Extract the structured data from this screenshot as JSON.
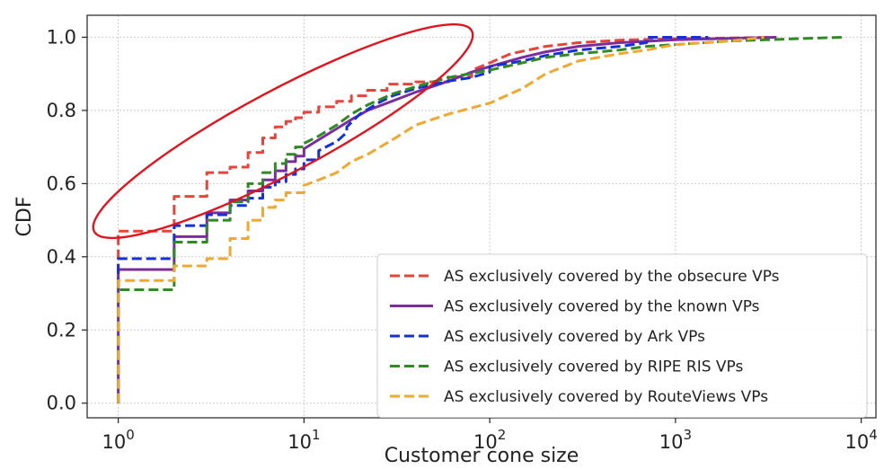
{
  "chart_data": {
    "type": "line",
    "xlabel": "Customer cone size",
    "ylabel": "CDF",
    "xscale": "log",
    "xlim": [
      0.68,
      12000
    ],
    "ylim": [
      -0.04,
      1.06
    ],
    "xticks": [
      1,
      10,
      100,
      1000,
      10000
    ],
    "xtick_labels": [
      {
        "base": "10",
        "exp": "0"
      },
      {
        "base": "10",
        "exp": "1"
      },
      {
        "base": "10",
        "exp": "2"
      },
      {
        "base": "10",
        "exp": "3"
      },
      {
        "base": "10",
        "exp": "4"
      }
    ],
    "yticks": [
      0.0,
      0.2,
      0.4,
      0.6,
      0.8,
      1.0
    ],
    "ytick_labels": [
      "0.0",
      "0.2",
      "0.4",
      "0.6",
      "0.8",
      "1.0"
    ],
    "grid": true,
    "legend_position": "lower-right",
    "series": [
      {
        "name": "AS exclusively covered by the obsecure VPs",
        "color": "#e8443a",
        "dash": "dashed",
        "points": [
          [
            1,
            0.0
          ],
          [
            1,
            0.47
          ],
          [
            2,
            0.47
          ],
          [
            2,
            0.565
          ],
          [
            3,
            0.565
          ],
          [
            3,
            0.63
          ],
          [
            4,
            0.63
          ],
          [
            4,
            0.645
          ],
          [
            5,
            0.645
          ],
          [
            5,
            0.685
          ],
          [
            6,
            0.685
          ],
          [
            6,
            0.725
          ],
          [
            7,
            0.725
          ],
          [
            7,
            0.755
          ],
          [
            8,
            0.755
          ],
          [
            8,
            0.77
          ],
          [
            9,
            0.77
          ],
          [
            9,
            0.78
          ],
          [
            10,
            0.78
          ],
          [
            10,
            0.795
          ],
          [
            12,
            0.795
          ],
          [
            12,
            0.81
          ],
          [
            15,
            0.81
          ],
          [
            15,
            0.825
          ],
          [
            18,
            0.825
          ],
          [
            18,
            0.84
          ],
          [
            22,
            0.84
          ],
          [
            22,
            0.855
          ],
          [
            28,
            0.855
          ],
          [
            28,
            0.872
          ],
          [
            40,
            0.872
          ],
          [
            40,
            0.878
          ],
          [
            60,
            0.878
          ],
          [
            60,
            0.892
          ],
          [
            80,
            0.892
          ],
          [
            80,
            0.91
          ],
          [
            100,
            0.93
          ],
          [
            130,
            0.955
          ],
          [
            200,
            0.975
          ],
          [
            300,
            0.985
          ],
          [
            500,
            0.992
          ],
          [
            1000,
            0.996
          ],
          [
            2000,
            0.998
          ],
          [
            3500,
            1.0
          ]
        ]
      },
      {
        "name": "AS exclusively covered by the known VPs",
        "color": "#7b2d9c",
        "dash": "solid",
        "points": [
          [
            1,
            0.0
          ],
          [
            1,
            0.365
          ],
          [
            2,
            0.365
          ],
          [
            2,
            0.455
          ],
          [
            3,
            0.455
          ],
          [
            3,
            0.52
          ],
          [
            4,
            0.52
          ],
          [
            4,
            0.555
          ],
          [
            5,
            0.555
          ],
          [
            5,
            0.58
          ],
          [
            6,
            0.58
          ],
          [
            6,
            0.61
          ],
          [
            7,
            0.61
          ],
          [
            7,
            0.635
          ],
          [
            8,
            0.635
          ],
          [
            8,
            0.66
          ],
          [
            9,
            0.66
          ],
          [
            9,
            0.675
          ],
          [
            10,
            0.675
          ],
          [
            10,
            0.695
          ],
          [
            12,
            0.72
          ],
          [
            15,
            0.75
          ],
          [
            18,
            0.775
          ],
          [
            22,
            0.8
          ],
          [
            28,
            0.82
          ],
          [
            40,
            0.85
          ],
          [
            60,
            0.88
          ],
          [
            80,
            0.905
          ],
          [
            100,
            0.92
          ],
          [
            150,
            0.945
          ],
          [
            200,
            0.96
          ],
          [
            300,
            0.975
          ],
          [
            500,
            0.985
          ],
          [
            1000,
            0.993
          ],
          [
            2000,
            0.997
          ],
          [
            3500,
            1.0
          ]
        ]
      },
      {
        "name": "AS exclusively covered by Ark VPs",
        "color": "#1530d8",
        "dash": "dashed",
        "points": [
          [
            1,
            0.0
          ],
          [
            1,
            0.395
          ],
          [
            2,
            0.395
          ],
          [
            2,
            0.41
          ],
          [
            2,
            0.485
          ],
          [
            3,
            0.485
          ],
          [
            3,
            0.515
          ],
          [
            4,
            0.515
          ],
          [
            4,
            0.54
          ],
          [
            5,
            0.54
          ],
          [
            5,
            0.56
          ],
          [
            6,
            0.56
          ],
          [
            6,
            0.59
          ],
          [
            7,
            0.59
          ],
          [
            7,
            0.605
          ],
          [
            8,
            0.605
          ],
          [
            8,
            0.625
          ],
          [
            9,
            0.625
          ],
          [
            9,
            0.64
          ],
          [
            10,
            0.64
          ],
          [
            10,
            0.665
          ],
          [
            12,
            0.665
          ],
          [
            12,
            0.69
          ],
          [
            15,
            0.715
          ],
          [
            17,
            0.74
          ],
          [
            17,
            0.755
          ],
          [
            20,
            0.79
          ],
          [
            25,
            0.82
          ],
          [
            30,
            0.84
          ],
          [
            40,
            0.86
          ],
          [
            60,
            0.88
          ],
          [
            80,
            0.89
          ],
          [
            100,
            0.905
          ],
          [
            100,
            0.92
          ],
          [
            150,
            0.935
          ],
          [
            200,
            0.95
          ],
          [
            300,
            0.965
          ],
          [
            500,
            0.975
          ],
          [
            700,
            0.985
          ],
          [
            700,
            1.0
          ],
          [
            1500,
            1.0
          ]
        ]
      },
      {
        "name": "AS exclusively covered by RIPE RIS VPs",
        "color": "#2f8a24",
        "dash": "dashed",
        "points": [
          [
            1,
            0.0
          ],
          [
            1,
            0.31
          ],
          [
            2,
            0.31
          ],
          [
            2,
            0.44
          ],
          [
            3,
            0.44
          ],
          [
            3,
            0.5
          ],
          [
            4,
            0.5
          ],
          [
            4,
            0.55
          ],
          [
            5,
            0.55
          ],
          [
            5,
            0.6
          ],
          [
            6,
            0.6
          ],
          [
            6,
            0.63
          ],
          [
            7,
            0.63
          ],
          [
            7,
            0.655
          ],
          [
            8,
            0.655
          ],
          [
            8,
            0.68
          ],
          [
            9,
            0.68
          ],
          [
            9,
            0.7
          ],
          [
            10,
            0.7
          ],
          [
            10,
            0.71
          ],
          [
            12,
            0.73
          ],
          [
            15,
            0.76
          ],
          [
            18,
            0.79
          ],
          [
            22,
            0.815
          ],
          [
            30,
            0.845
          ],
          [
            40,
            0.865
          ],
          [
            60,
            0.89
          ],
          [
            100,
            0.91
          ],
          [
            150,
            0.93
          ],
          [
            200,
            0.945
          ],
          [
            300,
            0.955
          ],
          [
            500,
            0.965
          ],
          [
            700,
            0.975
          ],
          [
            1000,
            0.98
          ],
          [
            2000,
            0.99
          ],
          [
            4000,
            0.995
          ],
          [
            8000,
            1.0
          ]
        ]
      },
      {
        "name": "AS exclusively covered by RouteViews VPs",
        "color": "#f0a830",
        "dash": "dashed",
        "points": [
          [
            1,
            0.0
          ],
          [
            1,
            0.335
          ],
          [
            2,
            0.335
          ],
          [
            2,
            0.375
          ],
          [
            3,
            0.375
          ],
          [
            3,
            0.395
          ],
          [
            4,
            0.395
          ],
          [
            4,
            0.45
          ],
          [
            5,
            0.45
          ],
          [
            5,
            0.5
          ],
          [
            6,
            0.5
          ],
          [
            6,
            0.535
          ],
          [
            7,
            0.535
          ],
          [
            7,
            0.555
          ],
          [
            8,
            0.555
          ],
          [
            8,
            0.575
          ],
          [
            10,
            0.575
          ],
          [
            10,
            0.595
          ],
          [
            12,
            0.61
          ],
          [
            15,
            0.63
          ],
          [
            18,
            0.66
          ],
          [
            22,
            0.68
          ],
          [
            30,
            0.72
          ],
          [
            40,
            0.76
          ],
          [
            60,
            0.79
          ],
          [
            100,
            0.82
          ],
          [
            150,
            0.86
          ],
          [
            200,
            0.9
          ],
          [
            300,
            0.935
          ],
          [
            500,
            0.955
          ],
          [
            700,
            0.965
          ],
          [
            1000,
            0.98
          ],
          [
            2000,
            0.99
          ],
          [
            3000,
            1.0
          ]
        ]
      }
    ],
    "annotation": {
      "shape": "ellipse",
      "color": "#e0141e"
    }
  }
}
